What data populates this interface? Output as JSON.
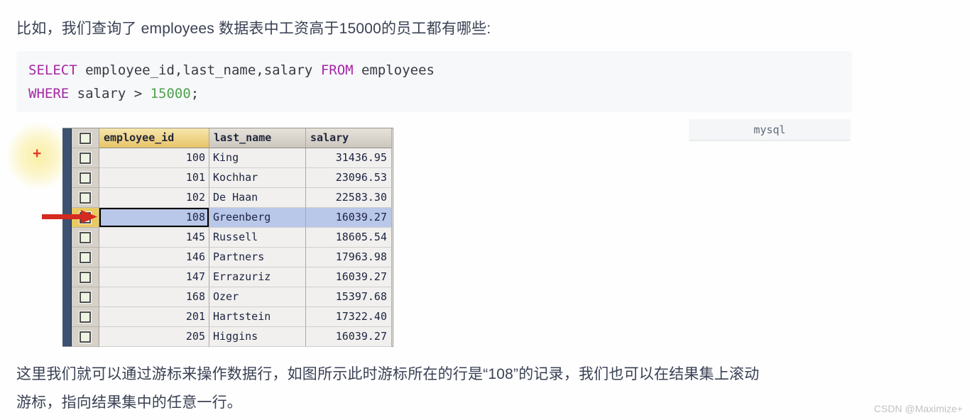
{
  "page": {
    "intro_text": "比如，我们查询了 employees 数据表中工资高于15000的员工都有哪些:",
    "footer_line1": "这里我们就可以通过游标来操作数据行，如图所示此时游标所在的行是“108”的记录，我们也可以在结果集上滚动",
    "footer_line2": "游标，指向结果集中的任意一行。",
    "watermark": "CSDN @Maximize+"
  },
  "code_block": {
    "language_label": "mysql",
    "colors": {
      "keyword": "#a626a4",
      "number": "#50a14f",
      "plain": "#383a42",
      "background": "#f7f8fa"
    },
    "lines": [
      [
        {
          "text": "SELECT",
          "type": "keyword"
        },
        {
          "text": " employee_id,last_name,salary ",
          "type": "plain"
        },
        {
          "text": "FROM",
          "type": "keyword"
        },
        {
          "text": " employees",
          "type": "plain"
        }
      ],
      [
        {
          "text": "WHERE",
          "type": "keyword"
        },
        {
          "text": " salary > ",
          "type": "plain"
        },
        {
          "text": "15000",
          "type": "number"
        },
        {
          "text": ";",
          "type": "plain"
        }
      ]
    ]
  },
  "result_table": {
    "columns": [
      "employee_id",
      "last_name",
      "salary"
    ],
    "rows": [
      {
        "employee_id": "100",
        "last_name": "King",
        "salary": "31436.95",
        "selected": false
      },
      {
        "employee_id": "101",
        "last_name": "Kochhar",
        "salary": "23096.53",
        "selected": false
      },
      {
        "employee_id": "102",
        "last_name": "De Haan",
        "salary": "22583.30",
        "selected": false
      },
      {
        "employee_id": "108",
        "last_name": "Greenberg",
        "salary": "16039.27",
        "selected": true
      },
      {
        "employee_id": "145",
        "last_name": "Russell",
        "salary": "18605.54",
        "selected": false
      },
      {
        "employee_id": "146",
        "last_name": "Partners",
        "salary": "17963.98",
        "selected": false
      },
      {
        "employee_id": "147",
        "last_name": "Errazuriz",
        "salary": "16039.27",
        "selected": false
      },
      {
        "employee_id": "168",
        "last_name": "Ozer",
        "salary": "15397.68",
        "selected": false
      },
      {
        "employee_id": "201",
        "last_name": "Hartstein",
        "salary": "17322.40",
        "selected": false
      },
      {
        "employee_id": "205",
        "last_name": "Higgins",
        "salary": "16039.27",
        "selected": false
      }
    ],
    "selected_employee_id": "108",
    "colors": {
      "selected_row_bg": "#b9c7e9",
      "selected_checkbox_bg": "#eac963",
      "header_selected_bg": "#e8c468",
      "row_bg": "#f1f0ee",
      "side_bar": "#3d5270",
      "annotation_red": "#d42a20"
    }
  }
}
